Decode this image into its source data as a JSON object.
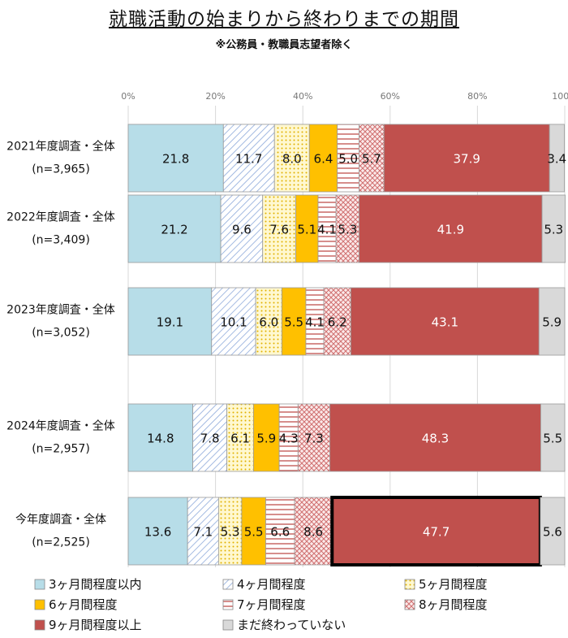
{
  "title": "就職活動の始まりから終わりまでの期間",
  "subtitle": "※公務員・教職員志望者除く",
  "chart_data": {
    "type": "bar",
    "orientation": "horizontal-stacked-100",
    "x_ticks": [
      "0%",
      "20%",
      "40%",
      "60%",
      "80%",
      "100%"
    ],
    "xlim": [
      0,
      100
    ],
    "grid": true,
    "legend_position": "bottom",
    "categories": [
      {
        "label": "2021年度調査・全体",
        "n": "(n=3,965)"
      },
      {
        "label": "2022年度調査・全体",
        "n": "(n=3,409)"
      },
      {
        "label": "2023年度調査・全体",
        "n": "(n=3,052)"
      },
      {
        "label": "2024年度調査・全体",
        "n": "(n=2,957)"
      },
      {
        "label": "今年度調査・全体",
        "n": "(n=2,525)"
      }
    ],
    "series": [
      {
        "name": "3ヶ月間程度以内",
        "color": "#b7dde8",
        "pattern": "solid",
        "values": [
          21.8,
          21.2,
          19.1,
          14.8,
          13.6
        ]
      },
      {
        "name": "4ヶ月間程度",
        "color": "#8eaadb",
        "pattern": "diagonal",
        "values": [
          11.7,
          9.6,
          10.1,
          7.8,
          7.1
        ]
      },
      {
        "name": "5ヶ月間程度",
        "color": "#f2c200",
        "pattern": "dots",
        "values": [
          8.0,
          7.6,
          6.0,
          6.1,
          5.3
        ]
      },
      {
        "name": "6ヶ月間程度",
        "color": "#ffc000",
        "pattern": "solid",
        "values": [
          6.4,
          5.1,
          5.5,
          5.9,
          5.5
        ]
      },
      {
        "name": "7ヶ月間程度",
        "color": "#c0504d",
        "pattern": "horizontal",
        "values": [
          5.0,
          4.1,
          4.1,
          4.3,
          6.6
        ]
      },
      {
        "name": "8ヶ月間程度",
        "color": "#c0504d",
        "pattern": "crosshatch",
        "values": [
          5.7,
          5.3,
          6.2,
          7.3,
          8.6
        ]
      },
      {
        "name": "9ヶ月間程度以上",
        "color": "#c0504d",
        "pattern": "solid",
        "values": [
          37.9,
          41.9,
          43.1,
          48.3,
          47.7
        ]
      },
      {
        "name": "まだ終わっていない",
        "color": "#d9d9d9",
        "pattern": "solid",
        "values": [
          3.4,
          5.3,
          5.9,
          5.5,
          5.6
        ]
      }
    ],
    "highlight": {
      "category_index": 4,
      "series_index": 6
    }
  }
}
